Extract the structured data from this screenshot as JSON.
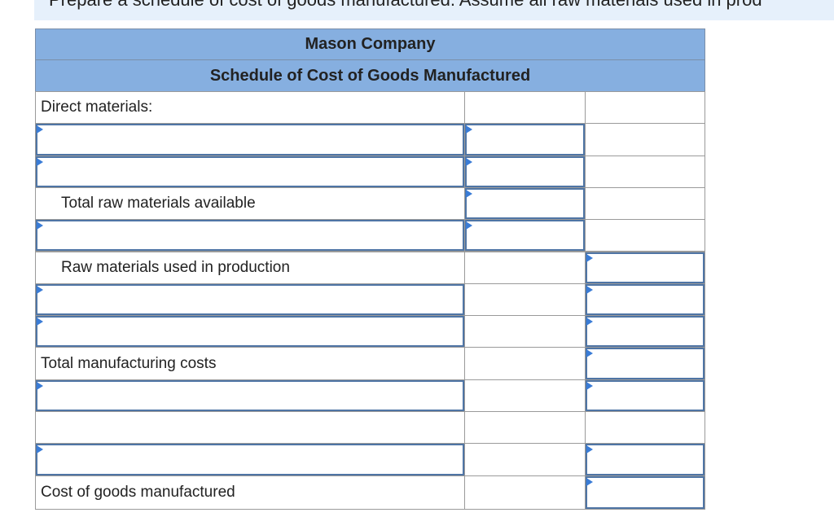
{
  "instruction": "Prepare a schedule of cost of goods manufactured. Assume all raw materials used in prod",
  "table": {
    "title": "Mason Company",
    "subtitle": "Schedule of Cost of Goods Manufactured",
    "labels": [
      "Direct materials:",
      "Total raw materials available",
      "Raw materials used in production",
      "Total manufacturing costs",
      "Cost of goods manufactured"
    ]
  }
}
